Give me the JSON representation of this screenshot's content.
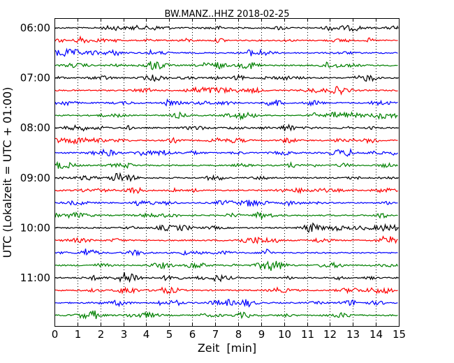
{
  "chart_data": {
    "type": "line",
    "title": "BW.MANZ..HHZ 2018-02-25",
    "xlabel": "Zeit  [min]",
    "ylabel": "UTC (Lokalzeit = UTC + 01:00)",
    "xlim": [
      0,
      15
    ],
    "x_ticks": [
      "0",
      "1",
      "2",
      "3",
      "4",
      "5",
      "6",
      "7",
      "8",
      "9",
      "10",
      "11",
      "12",
      "13",
      "14",
      "15"
    ],
    "vertical_gridlines": "dotted at every minute",
    "trace_interval_min": 15,
    "trace_colors": [
      "#000000",
      "#ff0000",
      "#0000ff",
      "#008000"
    ],
    "y_ticks": [
      "06:00",
      "07:00",
      "08:00",
      "09:00",
      "10:00",
      "11:00"
    ],
    "traces": [
      {
        "start": "06:00",
        "color": "#000000"
      },
      {
        "start": "06:15",
        "color": "#ff0000"
      },
      {
        "start": "06:30",
        "color": "#0000ff"
      },
      {
        "start": "06:45",
        "color": "#008000"
      },
      {
        "start": "07:00",
        "color": "#000000"
      },
      {
        "start": "07:15",
        "color": "#ff0000"
      },
      {
        "start": "07:30",
        "color": "#0000ff"
      },
      {
        "start": "07:45",
        "color": "#008000"
      },
      {
        "start": "08:00",
        "color": "#000000"
      },
      {
        "start": "08:15",
        "color": "#ff0000"
      },
      {
        "start": "08:30",
        "color": "#0000ff"
      },
      {
        "start": "08:45",
        "color": "#008000"
      },
      {
        "start": "09:00",
        "color": "#000000"
      },
      {
        "start": "09:15",
        "color": "#ff0000"
      },
      {
        "start": "09:30",
        "color": "#0000ff"
      },
      {
        "start": "09:45",
        "color": "#008000"
      },
      {
        "start": "10:00",
        "color": "#000000"
      },
      {
        "start": "10:15",
        "color": "#ff0000"
      },
      {
        "start": "10:30",
        "color": "#0000ff"
      },
      {
        "start": "10:45",
        "color": "#008000"
      },
      {
        "start": "11:00",
        "color": "#000000"
      },
      {
        "start": "11:15",
        "color": "#ff0000"
      },
      {
        "start": "11:30",
        "color": "#0000ff"
      },
      {
        "start": "11:45",
        "color": "#008000"
      }
    ]
  }
}
